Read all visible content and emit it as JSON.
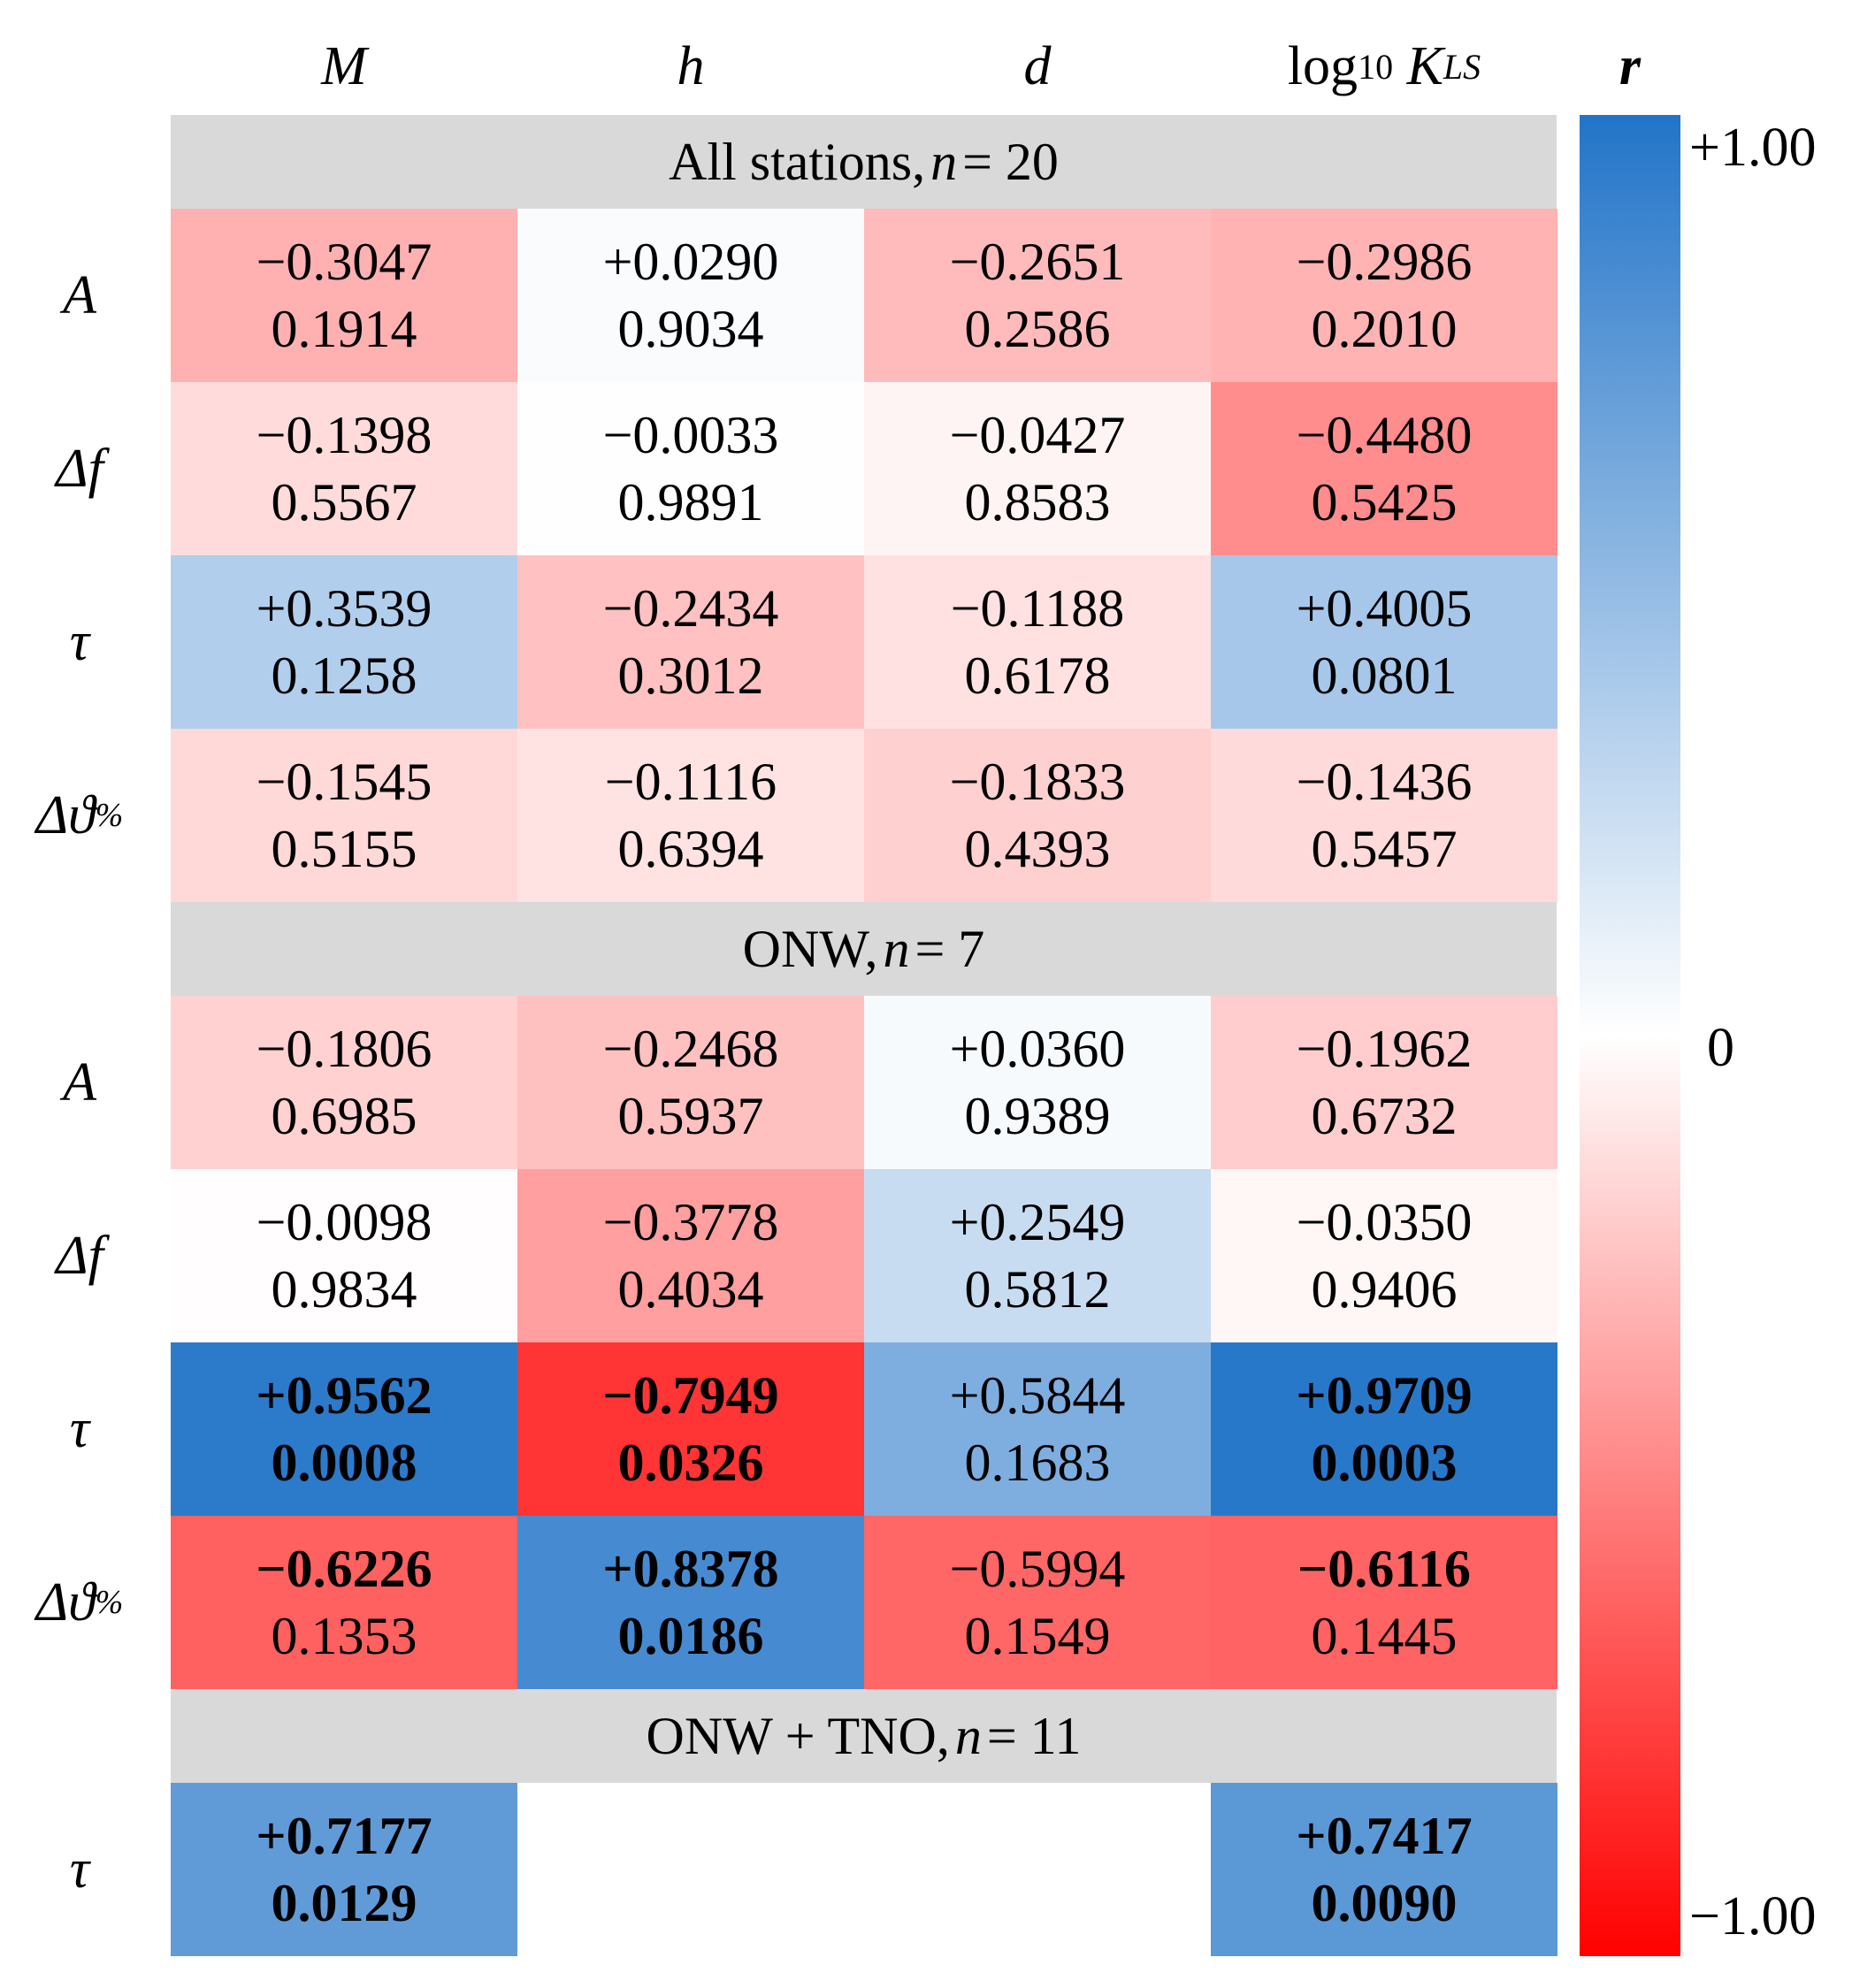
{
  "chart_data": {
    "type": "heatmap",
    "title": "",
    "columns": [
      "M",
      "h",
      "d",
      "log10 KLS"
    ],
    "column_headers": {
      "M": "M",
      "h": "h",
      "d": "d",
      "klog": {
        "prefix": "log",
        "base": "10",
        "symbol": "K",
        "sub": "LS"
      }
    },
    "colorbar": {
      "label": "r",
      "max_label": "+1.00",
      "mid_label": "0",
      "min_label": "−1.00",
      "range": [
        -1,
        1
      ],
      "colors": {
        "positive": "#2274c8",
        "zero": "#ffffff",
        "negative": "#ff0000"
      }
    },
    "groups": [
      {
        "label": {
          "prefix": "All stations,",
          "n": "n",
          "eq": "= 20"
        },
        "n": 20,
        "rows": [
          {
            "label": "A",
            "sub": "",
            "cells": [
              {
                "r": -0.3047,
                "r_text": "−0.3047",
                "p_text": "0.1914",
                "sig": false
              },
              {
                "r": 0.029,
                "r_text": "+0.0290",
                "p_text": "0.9034",
                "sig": false
              },
              {
                "r": -0.2651,
                "r_text": "−0.2651",
                "p_text": "0.2586",
                "sig": false
              },
              {
                "r": -0.2986,
                "r_text": "−0.2986",
                "p_text": "0.2010",
                "sig": false
              }
            ]
          },
          {
            "label": "Δf",
            "sub": "",
            "cells": [
              {
                "r": -0.1398,
                "r_text": "−0.1398",
                "p_text": "0.5567",
                "sig": false
              },
              {
                "r": -0.0033,
                "r_text": "−0.0033",
                "p_text": "0.9891",
                "sig": false
              },
              {
                "r": -0.0427,
                "r_text": "−0.0427",
                "p_text": "0.8583",
                "sig": false
              },
              {
                "r": -0.448,
                "r_text": "−0.4480",
                "p_text": "0.5425",
                "sig": false
              }
            ]
          },
          {
            "label": "τ",
            "sub": "",
            "cells": [
              {
                "r": 0.3539,
                "r_text": "+0.3539",
                "p_text": "0.1258",
                "sig": false
              },
              {
                "r": -0.2434,
                "r_text": "−0.2434",
                "p_text": "0.3012",
                "sig": false
              },
              {
                "r": -0.1188,
                "r_text": "−0.1188",
                "p_text": "0.6178",
                "sig": false
              },
              {
                "r": 0.4005,
                "r_text": "+0.4005",
                "p_text": "0.0801",
                "sig": false
              }
            ]
          },
          {
            "label": "Δϑ",
            "sub": "%",
            "cells": [
              {
                "r": -0.1545,
                "r_text": "−0.1545",
                "p_text": "0.5155",
                "sig": false
              },
              {
                "r": -0.1116,
                "r_text": "−0.1116",
                "p_text": "0.6394",
                "sig": false
              },
              {
                "r": -0.1833,
                "r_text": "−0.1833",
                "p_text": "0.4393",
                "sig": false
              },
              {
                "r": -0.1436,
                "r_text": "−0.1436",
                "p_text": "0.5457",
                "sig": false
              }
            ]
          }
        ]
      },
      {
        "label": {
          "prefix": "ONW,",
          "n": "n",
          "eq": "= 7"
        },
        "n": 7,
        "rows": [
          {
            "label": "A",
            "sub": "",
            "cells": [
              {
                "r": -0.1806,
                "r_text": "−0.1806",
                "p_text": "0.6985",
                "sig": false
              },
              {
                "r": -0.2468,
                "r_text": "−0.2468",
                "p_text": "0.5937",
                "sig": false
              },
              {
                "r": 0.036,
                "r_text": "+0.0360",
                "p_text": "0.9389",
                "sig": false
              },
              {
                "r": -0.1962,
                "r_text": "−0.1962",
                "p_text": "0.6732",
                "sig": false
              }
            ]
          },
          {
            "label": "Δf",
            "sub": "",
            "cells": [
              {
                "r": -0.0098,
                "r_text": "−0.0098",
                "p_text": "0.9834",
                "sig": false
              },
              {
                "r": -0.3778,
                "r_text": "−0.3778",
                "p_text": "0.4034",
                "sig": false
              },
              {
                "r": 0.2549,
                "r_text": "+0.2549",
                "p_text": "0.5812",
                "sig": false
              },
              {
                "r": -0.035,
                "r_text": "−0.0350",
                "p_text": "0.9406",
                "sig": false
              }
            ]
          },
          {
            "label": "τ",
            "sub": "",
            "cells": [
              {
                "r": 0.9562,
                "r_text": "+0.9562",
                "p_text": "0.0008",
                "sig": true
              },
              {
                "r": -0.7949,
                "r_text": "−0.7949",
                "p_text": "0.0326",
                "sig": true
              },
              {
                "r": 0.5844,
                "r_text": "+0.5844",
                "p_text": "0.1683",
                "sig": false
              },
              {
                "r": 0.9709,
                "r_text": "+0.9709",
                "p_text": "0.0003",
                "sig": true
              }
            ]
          },
          {
            "label": "Δϑ",
            "sub": "%",
            "cells": [
              {
                "r": -0.6226,
                "r_text": "−0.6226",
                "p_text": "0.1353",
                "sig": "r_only"
              },
              {
                "r": 0.8378,
                "r_text": "+0.8378",
                "p_text": "0.0186",
                "sig": true
              },
              {
                "r": -0.5994,
                "r_text": "−0.5994",
                "p_text": "0.1549",
                "sig": false
              },
              {
                "r": -0.6116,
                "r_text": "−0.6116",
                "p_text": "0.1445",
                "sig": "r_only"
              }
            ]
          }
        ]
      },
      {
        "label": {
          "prefix": "ONW + TNO,",
          "n": "n",
          "eq": "= 11"
        },
        "n": 11,
        "rows": [
          {
            "label": "τ",
            "sub": "",
            "cells": [
              {
                "r": 0.7177,
                "r_text": "+0.7177",
                "p_text": "0.0129",
                "sig": true
              },
              null,
              null,
              {
                "r": 0.7417,
                "r_text": "+0.7417",
                "p_text": "0.0090",
                "sig": true
              }
            ]
          }
        ]
      }
    ]
  }
}
